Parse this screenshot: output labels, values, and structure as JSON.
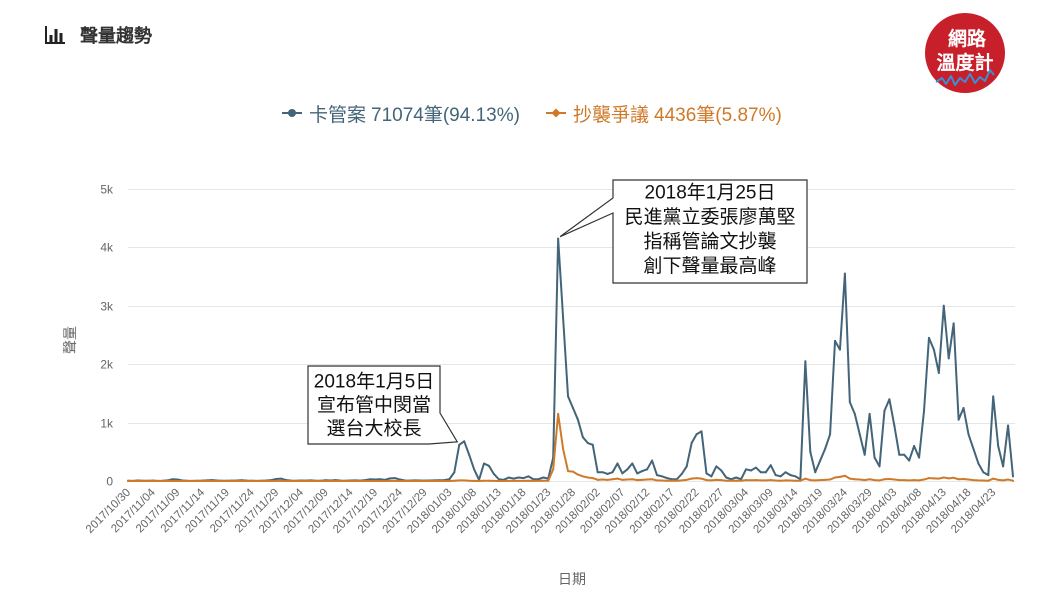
{
  "header": {
    "icon": "bar-chart-icon"
  },
  "logo": {
    "line1": "網路",
    "line2": "溫度計",
    "color": "#c8202b",
    "wave_color": "#3a8fd6"
  },
  "chart_data": {
    "type": "line",
    "title": "聲量趨勢",
    "xlabel": "日期",
    "ylabel": "聲量",
    "ylim": [
      0,
      5000
    ],
    "yticks": [
      0,
      1000,
      2000,
      3000,
      4000,
      5000
    ],
    "ytick_labels": [
      "0",
      "1k",
      "2k",
      "3k",
      "4k",
      "5k"
    ],
    "grid": true,
    "legend_position": "top-center",
    "x": [
      "2017/10/30",
      "2017/10/31",
      "2017/11/01",
      "2017/11/02",
      "2017/11/03",
      "2017/11/04",
      "2017/11/05",
      "2017/11/06",
      "2017/11/07",
      "2017/11/08",
      "2017/11/09",
      "2017/11/10",
      "2017/11/11",
      "2017/11/12",
      "2017/11/13",
      "2017/11/14",
      "2017/11/15",
      "2017/11/16",
      "2017/11/17",
      "2017/11/18",
      "2017/11/19",
      "2017/11/20",
      "2017/11/21",
      "2017/11/22",
      "2017/11/23",
      "2017/11/24",
      "2017/11/25",
      "2017/11/26",
      "2017/11/27",
      "2017/11/28",
      "2017/11/29",
      "2017/11/30",
      "2017/12/01",
      "2017/12/02",
      "2017/12/03",
      "2017/12/04",
      "2017/12/05",
      "2017/12/06",
      "2017/12/07",
      "2017/12/08",
      "2017/12/09",
      "2017/12/10",
      "2017/12/11",
      "2017/12/12",
      "2017/12/13",
      "2017/12/14",
      "2017/12/15",
      "2017/12/16",
      "2017/12/17",
      "2017/12/18",
      "2017/12/19",
      "2017/12/20",
      "2017/12/21",
      "2017/12/22",
      "2017/12/23",
      "2017/12/24",
      "2017/12/25",
      "2017/12/26",
      "2017/12/27",
      "2017/12/28",
      "2017/12/29",
      "2017/12/30",
      "2017/12/31",
      "2018/01/01",
      "2018/01/02",
      "2018/01/03",
      "2018/01/04",
      "2018/01/05",
      "2018/01/06",
      "2018/01/07",
      "2018/01/08",
      "2018/01/09",
      "2018/01/10",
      "2018/01/11",
      "2018/01/12",
      "2018/01/13",
      "2018/01/14",
      "2018/01/15",
      "2018/01/16",
      "2018/01/17",
      "2018/01/18",
      "2018/01/19",
      "2018/01/20",
      "2018/01/21",
      "2018/01/22",
      "2018/01/23",
      "2018/01/24",
      "2018/01/25",
      "2018/01/26",
      "2018/01/27",
      "2018/01/28",
      "2018/01/29",
      "2018/01/30",
      "2018/01/31",
      "2018/02/01",
      "2018/02/02",
      "2018/02/03",
      "2018/02/04",
      "2018/02/05",
      "2018/02/06",
      "2018/02/07",
      "2018/02/08",
      "2018/02/09",
      "2018/02/10",
      "2018/02/11",
      "2018/02/12",
      "2018/02/13",
      "2018/02/14",
      "2018/02/15",
      "2018/02/16",
      "2018/02/17",
      "2018/02/18",
      "2018/02/19",
      "2018/02/20",
      "2018/02/21",
      "2018/02/22",
      "2018/02/23",
      "2018/02/24",
      "2018/02/25",
      "2018/02/26",
      "2018/02/27",
      "2018/02/28",
      "2018/03/01",
      "2018/03/02",
      "2018/03/03",
      "2018/03/04",
      "2018/03/05",
      "2018/03/06",
      "2018/03/07",
      "2018/03/08",
      "2018/03/09",
      "2018/03/10",
      "2018/03/11",
      "2018/03/12",
      "2018/03/13",
      "2018/03/14",
      "2018/03/15",
      "2018/03/16",
      "2018/03/17",
      "2018/03/18",
      "2018/03/19",
      "2018/03/20",
      "2018/03/21",
      "2018/03/22",
      "2018/03/23",
      "2018/03/24",
      "2018/03/25",
      "2018/03/26",
      "2018/03/27",
      "2018/03/28",
      "2018/03/29",
      "2018/03/30",
      "2018/03/31",
      "2018/04/01",
      "2018/04/02",
      "2018/04/03",
      "2018/04/04",
      "2018/04/05",
      "2018/04/06",
      "2018/04/07",
      "2018/04/08",
      "2018/04/09",
      "2018/04/10",
      "2018/04/11",
      "2018/04/12",
      "2018/04/13",
      "2018/04/14",
      "2018/04/15",
      "2018/04/16",
      "2018/04/17",
      "2018/04/18",
      "2018/04/19",
      "2018/04/20",
      "2018/04/21",
      "2018/04/22",
      "2018/04/23",
      "2018/04/24",
      "2018/04/25",
      "2018/04/26",
      "2018/04/27"
    ],
    "xtick_labels": [
      "2017/10/30",
      "2017/11/04",
      "2017/11/09",
      "2017/11/14",
      "2017/11/19",
      "2017/11/24",
      "2017/11/29",
      "2017/12/04",
      "2017/12/09",
      "2017/12/14",
      "2017/12/19",
      "2017/12/24",
      "2017/12/29",
      "2018/01/03",
      "2018/01/08",
      "2018/01/13",
      "2018/01/18",
      "2018/01/23",
      "2018/01/28",
      "2018/02/02",
      "2018/02/07",
      "2018/02/12",
      "2018/02/17",
      "2018/02/22",
      "2018/02/27",
      "2018/03/04",
      "2018/03/09",
      "2018/03/14",
      "2018/03/19",
      "2018/03/24",
      "2018/03/29",
      "2018/04/03",
      "2018/04/08",
      "2018/04/13",
      "2018/04/18",
      "2018/04/23"
    ],
    "series": [
      {
        "name": "卡管案",
        "legend_stat": "71074筆(94.13%)",
        "color": "#446579",
        "marker": "circle",
        "values": [
          5,
          3,
          8,
          5,
          4,
          6,
          3,
          5,
          10,
          30,
          25,
          8,
          4,
          3,
          5,
          6,
          10,
          15,
          8,
          4,
          5,
          6,
          8,
          12,
          6,
          4,
          3,
          5,
          8,
          15,
          35,
          40,
          15,
          6,
          4,
          8,
          6,
          10,
          5,
          4,
          12,
          8,
          15,
          6,
          5,
          8,
          10,
          6,
          15,
          30,
          25,
          30,
          20,
          45,
          50,
          25,
          8,
          6,
          10,
          8,
          6,
          8,
          10,
          12,
          15,
          30,
          150,
          620,
          680,
          450,
          200,
          20,
          300,
          260,
          120,
          30,
          20,
          60,
          40,
          60,
          50,
          80,
          30,
          30,
          60,
          40,
          400,
          4150,
          2800,
          1450,
          1250,
          1050,
          750,
          650,
          620,
          150,
          150,
          120,
          150,
          300,
          130,
          200,
          300,
          130,
          170,
          200,
          350,
          100,
          80,
          50,
          30,
          30,
          120,
          250,
          650,
          800,
          850,
          130,
          80,
          250,
          180,
          60,
          30,
          60,
          30,
          200,
          180,
          230,
          150,
          150,
          270,
          100,
          80,
          150,
          100,
          80,
          30,
          2050,
          500,
          150,
          350,
          550,
          800,
          2400,
          2250,
          3550,
          1350,
          1150,
          800,
          450,
          1150,
          400,
          250,
          1200,
          1400,
          950,
          450,
          450,
          350,
          600,
          400,
          1200,
          2450,
          2250,
          1850,
          3000,
          2100,
          2700,
          1050,
          1250,
          800,
          550,
          300,
          150,
          100,
          1450,
          600,
          250,
          950,
          80
        ]
      },
      {
        "name": "抄襲爭議",
        "legend_stat": "4436筆(5.87%)",
        "color": "#cf7a29",
        "marker": "diamond",
        "values": [
          0,
          0,
          0,
          0,
          0,
          0,
          0,
          0,
          0,
          2,
          0,
          0,
          0,
          0,
          0,
          0,
          0,
          0,
          0,
          0,
          0,
          0,
          0,
          0,
          0,
          0,
          0,
          0,
          0,
          0,
          2,
          2,
          0,
          0,
          0,
          0,
          0,
          0,
          0,
          0,
          0,
          0,
          0,
          0,
          0,
          0,
          0,
          0,
          0,
          0,
          0,
          0,
          0,
          2,
          2,
          0,
          0,
          0,
          0,
          0,
          0,
          0,
          0,
          0,
          0,
          0,
          5,
          10,
          10,
          5,
          3,
          0,
          5,
          5,
          3,
          0,
          0,
          2,
          2,
          3,
          2,
          5,
          2,
          2,
          5,
          5,
          200,
          1150,
          550,
          170,
          160,
          110,
          80,
          60,
          50,
          20,
          25,
          20,
          30,
          40,
          20,
          25,
          30,
          15,
          20,
          25,
          30,
          10,
          8,
          5,
          5,
          5,
          10,
          20,
          40,
          50,
          40,
          15,
          10,
          20,
          15,
          5,
          5,
          5,
          5,
          15,
          12,
          15,
          10,
          10,
          15,
          8,
          5,
          10,
          8,
          5,
          5,
          40,
          15,
          10,
          15,
          20,
          25,
          60,
          70,
          90,
          40,
          30,
          25,
          15,
          30,
          15,
          10,
          30,
          35,
          25,
          15,
          15,
          10,
          15,
          10,
          25,
          50,
          45,
          40,
          60,
          45,
          55,
          30,
          35,
          25,
          15,
          10,
          8,
          5,
          40,
          20,
          10,
          25,
          5
        ]
      }
    ],
    "annotations": [
      {
        "x": "2018/01/25",
        "y": 4150,
        "lines": [
          "2018年1月25日",
          "民進黨立委張廖萬堅",
          "指稱管論文抄襲",
          "創下聲量最高峰"
        ]
      },
      {
        "x": "2018/01/05",
        "y": 620,
        "lines": [
          "2018年1月5日",
          "宣布管中閔當",
          "選台大校長"
        ]
      }
    ]
  }
}
